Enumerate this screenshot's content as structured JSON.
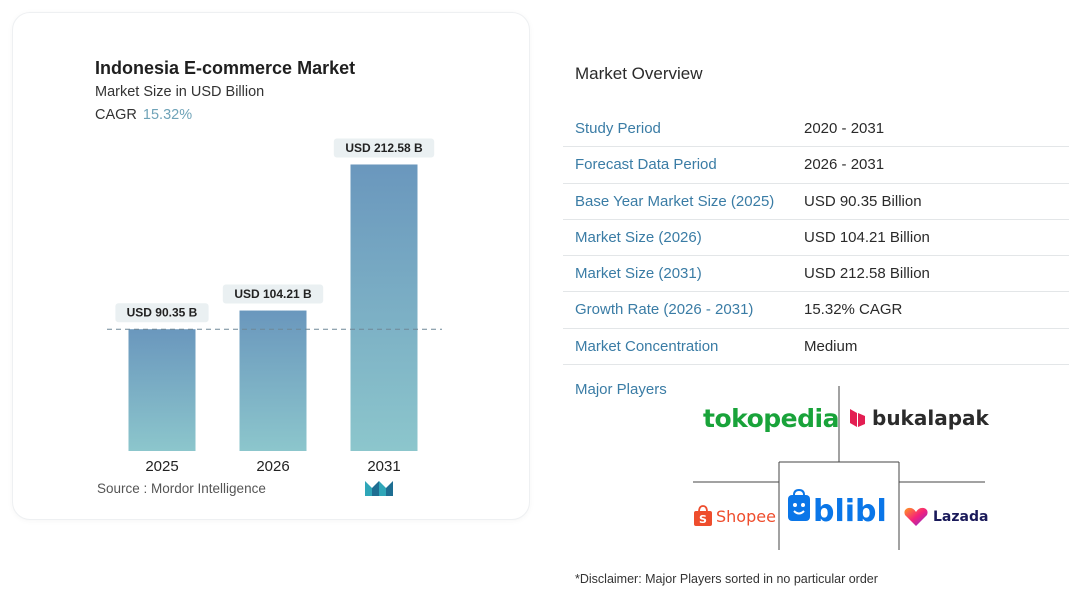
{
  "chart_data": {
    "type": "bar",
    "title": "Indonesia E-commerce Market",
    "subtitle": "Market Size in USD Billion",
    "cagr_label": "CAGR",
    "cagr_value": "15.32%",
    "categories": [
      "2025",
      "2026",
      "2031"
    ],
    "values": [
      90.35,
      104.21,
      212.58
    ],
    "data_labels": [
      "USD 90.35 B",
      "USD 104.21 B",
      "USD 212.58 B"
    ],
    "ylim": [
      0,
      230
    ],
    "reference_line_value": 90.35,
    "grid": false,
    "bar_gradient": [
      "#6a97bd",
      "#8cc6cc"
    ]
  },
  "source_text": "Source :  Mordor Intelligence",
  "overview": {
    "title": "Market Overview",
    "rows": [
      {
        "label": "Study Period",
        "value": "2020 - 2031"
      },
      {
        "label": "Forecast Data Period",
        "value": "2026 - 2031"
      },
      {
        "label": "Base Year Market Size (2025)",
        "value": "USD 90.35 Billion"
      },
      {
        "label": "Market Size (2026)",
        "value": "USD 104.21 Billion"
      },
      {
        "label": "Market Size (2031)",
        "value": "USD 212.58 Billion"
      },
      {
        "label": "Growth Rate (2026 - 2031)",
        "value": "15.32% CAGR"
      },
      {
        "label": "Market Concentration",
        "value": "Medium"
      }
    ]
  },
  "players": {
    "label": "Major Players",
    "logos": {
      "tokopedia": "tokopedia",
      "bukalapak": "bukalapak",
      "shopee": "Shopee",
      "blibli": "blibli",
      "lazada": "Lazada"
    }
  },
  "disclaimer": "*Disclaimer: Major Players sorted in no particular order"
}
